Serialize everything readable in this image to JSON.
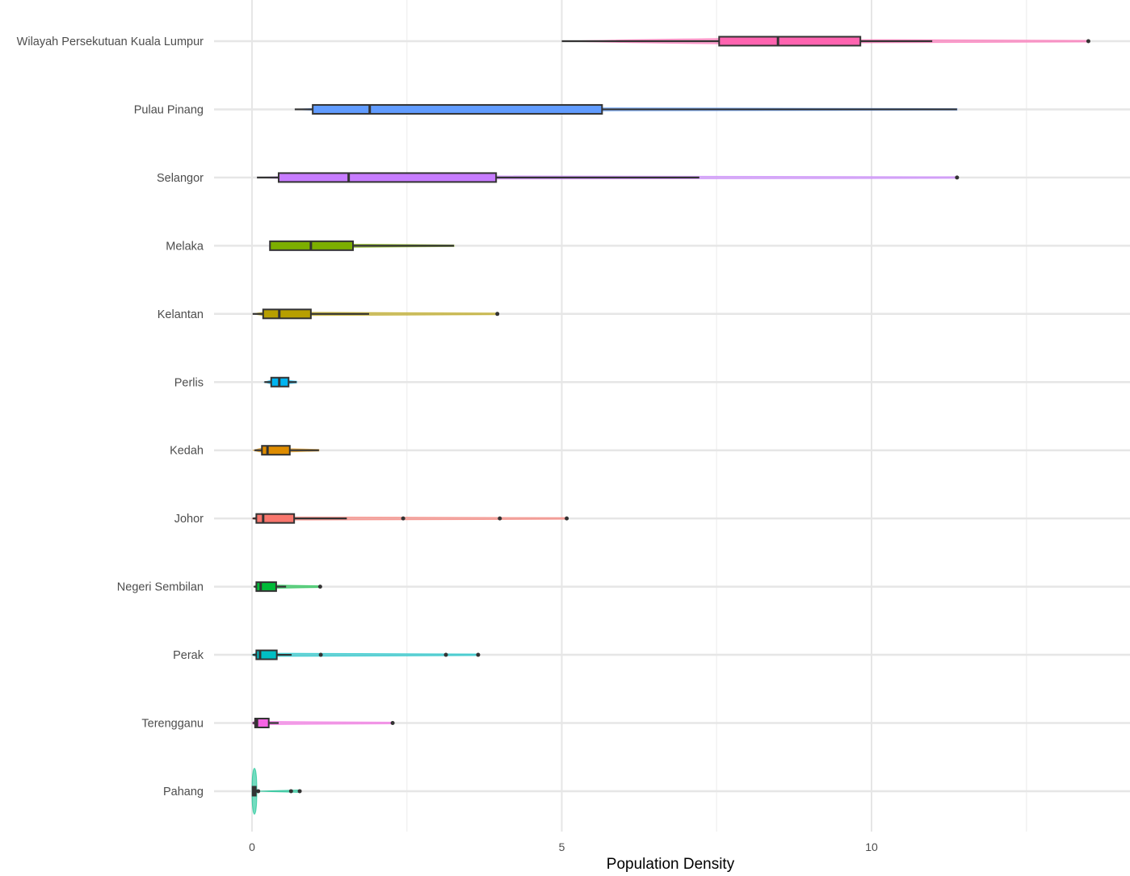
{
  "chart_data": {
    "type": "violin-boxplot",
    "orientation": "horizontal",
    "xlabel": "Population Density",
    "ylabel": "",
    "xlim": [
      -0.4,
      14.0
    ],
    "xticks": [
      0,
      5,
      10
    ],
    "xtick_labels": [
      "0",
      "5",
      "10"
    ],
    "grid": true,
    "legend": "none",
    "series": [
      {
        "name": "Wilayah Persekutuan Kuala Lumpur",
        "color": "#FF64B0",
        "whisker_low": 5.0,
        "q1": 7.54,
        "median": 8.49,
        "q3": 9.82,
        "whisker_high": 10.98,
        "outliers": [
          13.5
        ],
        "min": 5.0,
        "max": 13.5
      },
      {
        "name": "Pulau Pinang",
        "color": "#619CFF",
        "whisker_low": 0.69,
        "q1": 0.98,
        "median": 1.9,
        "q3": 5.65,
        "whisker_high": 11.38,
        "outliers": [],
        "min": 0.69,
        "max": 11.38
      },
      {
        "name": "Selangor",
        "color": "#C77CFF",
        "whisker_low": 0.08,
        "q1": 0.43,
        "median": 1.56,
        "q3": 3.94,
        "whisker_high": 7.22,
        "outliers": [
          11.38
        ],
        "min": 0.08,
        "max": 11.38
      },
      {
        "name": "Melaka",
        "color": "#7CAE00",
        "whisker_low": 0.29,
        "q1": 0.29,
        "median": 0.95,
        "q3": 1.63,
        "whisker_high": 3.26,
        "outliers": [],
        "min": 0.29,
        "max": 3.26
      },
      {
        "name": "Kelantan",
        "color": "#B79F00",
        "whisker_low": 0.01,
        "q1": 0.18,
        "median": 0.44,
        "q3": 0.95,
        "whisker_high": 1.89,
        "outliers": [
          3.96
        ],
        "min": 0.01,
        "max": 3.96
      },
      {
        "name": "Perlis",
        "color": "#00B4F0",
        "whisker_low": 0.2,
        "q1": 0.31,
        "median": 0.44,
        "q3": 0.59,
        "whisker_high": 0.72,
        "outliers": [],
        "min": 0.2,
        "max": 0.72
      },
      {
        "name": "Kedah",
        "color": "#DE8C00",
        "whisker_low": 0.04,
        "q1": 0.16,
        "median": 0.25,
        "q3": 0.61,
        "whisker_high": 1.08,
        "outliers": [],
        "min": 0.02,
        "max": 1.08
      },
      {
        "name": "Johor",
        "color": "#F8766D",
        "whisker_low": 0.01,
        "q1": 0.07,
        "median": 0.18,
        "q3": 0.68,
        "whisker_high": 1.53,
        "outliers": [
          2.44,
          4.0,
          5.08
        ],
        "min": 0.0,
        "max": 5.08
      },
      {
        "name": "Negeri Sembilan",
        "color": "#00BA38",
        "whisker_low": 0.03,
        "q1": 0.07,
        "median": 0.14,
        "q3": 0.39,
        "whisker_high": 0.55,
        "outliers": [
          1.1
        ],
        "min": 0.03,
        "max": 1.1
      },
      {
        "name": "Perak",
        "color": "#00BFC4",
        "whisker_low": 0.01,
        "q1": 0.07,
        "median": 0.13,
        "q3": 0.4,
        "whisker_high": 0.64,
        "outliers": [
          1.11,
          3.13,
          3.65
        ],
        "min": 0.0,
        "max": 3.65
      },
      {
        "name": "Terengganu",
        "color": "#F564E3",
        "whisker_low": 0.01,
        "q1": 0.05,
        "median": 0.08,
        "q3": 0.27,
        "whisker_high": 0.43,
        "outliers": [
          2.27
        ],
        "min": 0.0,
        "max": 2.27
      },
      {
        "name": "Pahang",
        "color": "#00C08B",
        "whisker_low": 0.01,
        "q1": 0.01,
        "median": 0.03,
        "q3": 0.06,
        "whisker_high": 0.1,
        "outliers": [
          0.1,
          0.63,
          0.77
        ],
        "min": 0.0,
        "max": 0.77
      }
    ]
  }
}
